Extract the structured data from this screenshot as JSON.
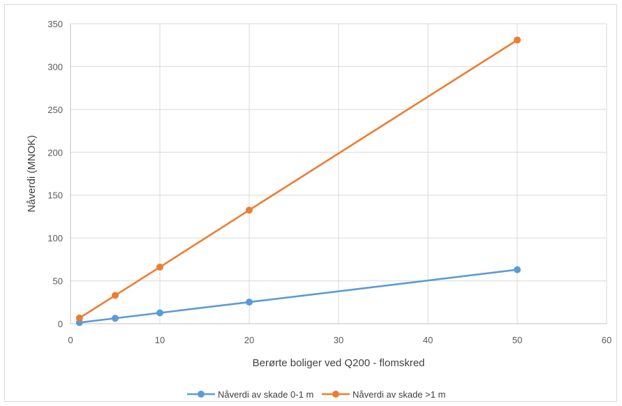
{
  "chart_data": {
    "type": "line",
    "title": "",
    "xlabel": "Berørte boliger ved Q200 - flomskred",
    "ylabel": "Nåverdi (MNOK)",
    "xlim": [
      0,
      60
    ],
    "ylim": [
      0,
      350
    ],
    "x_ticks": [
      "0",
      "10",
      "20",
      "30",
      "40",
      "50",
      "60"
    ],
    "y_ticks": [
      "0",
      "50",
      "100",
      "150",
      "200",
      "250",
      "300",
      "350"
    ],
    "grid": true,
    "legend_position": "bottom",
    "series": [
      {
        "name": "Nåverdi av skade 0-1 m",
        "color": "#5b9bd5",
        "x": [
          1,
          5,
          10,
          20,
          50
        ],
        "y": [
          1.3,
          6.3,
          12.6,
          25.2,
          63
        ]
      },
      {
        "name": "Nåverdi av skade >1 m",
        "color": "#ed7d31",
        "x": [
          1,
          5,
          10,
          20,
          50
        ],
        "y": [
          6.6,
          33,
          66,
          132.5,
          331
        ]
      }
    ]
  }
}
